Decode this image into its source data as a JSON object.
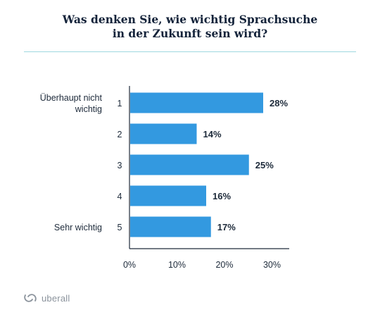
{
  "chart_data": {
    "type": "bar",
    "orientation": "horizontal",
    "title_lines": [
      "Was denken Sie, wie wichtig Sprachsuche",
      "in der Zukunft sein wird?"
    ],
    "categories": [
      "1",
      "2",
      "3",
      "4",
      "5"
    ],
    "category_labels": [
      [
        "Überhaupt nicht",
        "wichtig"
      ],
      [],
      [],
      [],
      [
        "Sehr wichtig"
      ]
    ],
    "values": [
      28,
      14,
      25,
      16,
      17
    ],
    "data_labels": [
      "28%",
      "14%",
      "25%",
      "16%",
      "17%"
    ],
    "x_ticks": [
      0,
      10,
      20,
      30
    ],
    "x_tick_labels": [
      "0%",
      "10%",
      "20%",
      "30%"
    ],
    "xlim": [
      0,
      30
    ],
    "grid": false,
    "bar_color": "#3399e0"
  },
  "brand": {
    "name": "uberall",
    "icon": "uberall-logo-icon"
  }
}
